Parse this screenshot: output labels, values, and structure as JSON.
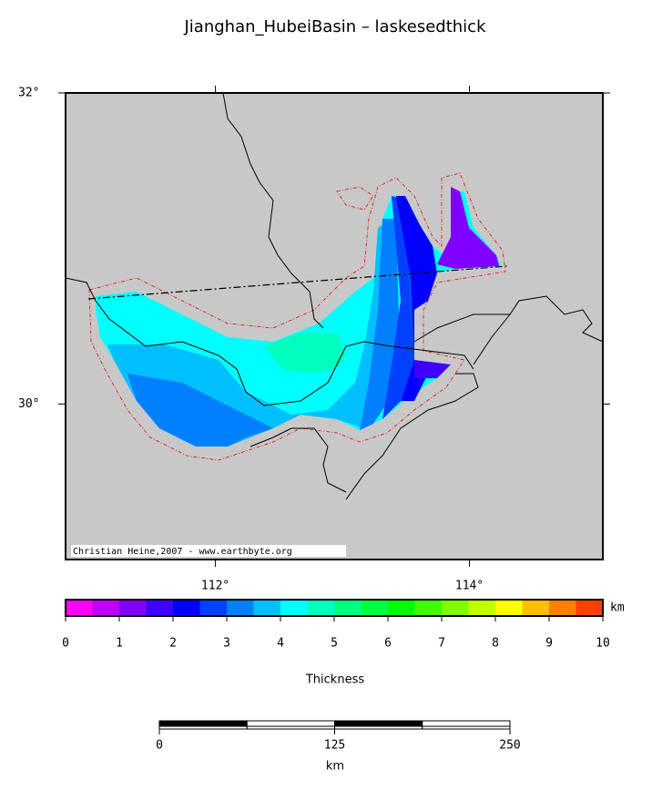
{
  "title": "Jianghan_HubeiBasin – laskesedthick",
  "map": {
    "xlim": [
      110.82,
      115.05
    ],
    "ylim": [
      29,
      32
    ],
    "xticks": [
      {
        "value": 112,
        "label": "112°"
      },
      {
        "value": 114,
        "label": "114°"
      }
    ],
    "yticks": [
      {
        "value": 30,
        "label": "30°"
      },
      {
        "value": 32,
        "label": "32°"
      }
    ],
    "credit": "Christian Heine,2007 - www.earthbyte.org"
  },
  "colorbar": {
    "label": "Thickness",
    "unit": "km",
    "range": [
      0,
      10
    ],
    "ticks": [
      0,
      1,
      2,
      3,
      4,
      5,
      6,
      7,
      8,
      9,
      10
    ],
    "colors": [
      "#ff00ff",
      "#bf00ff",
      "#8000ff",
      "#4000ff",
      "#0000ff",
      "#0040ff",
      "#0080ff",
      "#00bfff",
      "#00ffff",
      "#00ffbf",
      "#00ff80",
      "#00ff40",
      "#00ff00",
      "#40ff00",
      "#80ff00",
      "#bfff00",
      "#ffff00",
      "#ffbf00",
      "#ff8000",
      "#ff4000"
    ]
  },
  "scale_bar": {
    "unit": "km",
    "range": [
      0,
      250
    ],
    "ticks": [
      0,
      125,
      250
    ]
  }
}
